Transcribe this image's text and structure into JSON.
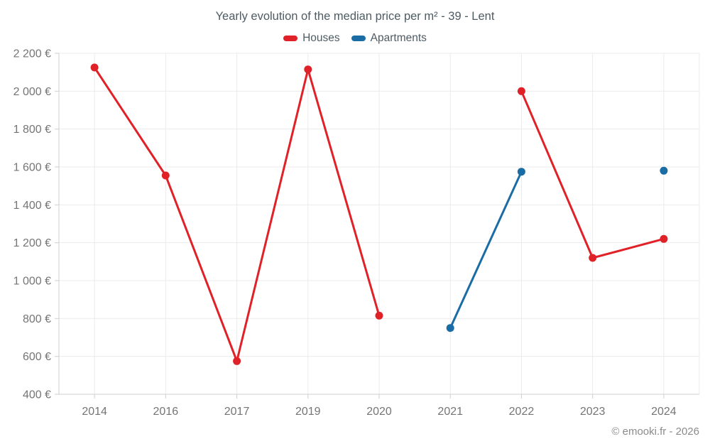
{
  "page": {
    "title": "Yearly evolution of the median price per m² - 39 - Lent",
    "footer": "© emooki.fr - 2026"
  },
  "legend": {
    "items": [
      {
        "label": "Houses",
        "color": "#e02127"
      },
      {
        "label": "Apartments",
        "color": "#1a6ca4"
      }
    ]
  },
  "chart_data": {
    "type": "line",
    "title": "Yearly evolution of the median price per m² - 39 - Lent",
    "categories": [
      "2014",
      "2016",
      "2017",
      "2019",
      "2020",
      "2021",
      "2022",
      "2023",
      "2024"
    ],
    "series": [
      {
        "name": "Houses",
        "color": "#e02127",
        "values": [
          2125,
          1555,
          575,
          2115,
          815,
          null,
          2000,
          1120,
          1220
        ]
      },
      {
        "name": "Apartments",
        "color": "#1a6ca4",
        "values": [
          null,
          null,
          null,
          null,
          null,
          750,
          1575,
          null,
          1580
        ]
      }
    ],
    "ylim": [
      400,
      2200
    ],
    "yticks": [
      400,
      600,
      800,
      1000,
      1200,
      1400,
      1600,
      1800,
      2000,
      2200
    ],
    "ytick_labels": [
      "400 €",
      "600 €",
      "800 €",
      "1 000 €",
      "1 200 €",
      "1 400 €",
      "1 600 €",
      "1 800 €",
      "2 000 €",
      "2 200 €"
    ],
    "xlabel": "",
    "ylabel": "",
    "grid": true,
    "legend_position": "top"
  },
  "colors": {
    "grid": "#ebebeb",
    "axis": "#cfcfcf",
    "tick_text": "#757575",
    "title_text": "#4e5b63",
    "footer_text": "#8b8b8b"
  }
}
